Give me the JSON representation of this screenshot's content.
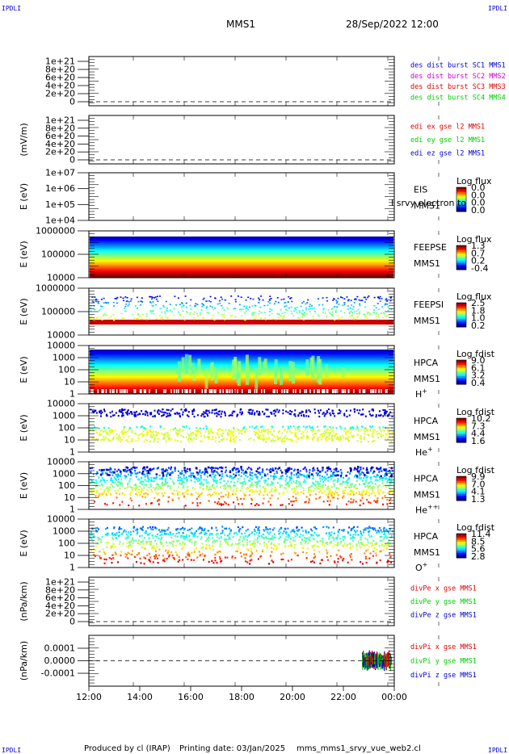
{
  "corner_label": "IPDLI",
  "header": {
    "spacecraft": "MMS1",
    "datetime": "28/Sep/2022 12:00"
  },
  "footer": {
    "produced_by": "Produced by cl (IRAP)",
    "printing_date": "Printing date: 03/Jan/2025",
    "filename": "mms_mms1_srvy_vue_web2.cl"
  },
  "x_ticks": [
    "12:00",
    "14:00",
    "16:00",
    "18:00",
    "20:00",
    "22:00",
    "00:00"
  ],
  "colors": {
    "c1": "#0000cc",
    "c2": "#cc00cc",
    "c3": "#dd0000",
    "c4": "#00cc00",
    "red": "#dd0000",
    "green": "#00cc00",
    "blue": "#0000cc"
  },
  "chart_data": [
    {
      "type": "line",
      "panel": "des-dist",
      "yticks": [
        "1e+21",
        "8e+20",
        "6e+20",
        "4e+20",
        "2e+20",
        "0"
      ],
      "ylabel": "",
      "legend": [
        {
          "text": "des dist burst SC1 MMS1",
          "color": "c1"
        },
        {
          "text": "des dist burst SC2 MMS2",
          "color": "c2"
        },
        {
          "text": "des dist burst SC3 MMS3",
          "color": "c3"
        },
        {
          "text": "des dist burst SC4 MMS4",
          "color": "c4"
        }
      ]
    },
    {
      "type": "line",
      "panel": "edi",
      "yticks": [
        "1e+21",
        "8e+20",
        "6e+20",
        "4e+20",
        "2e+20",
        "0"
      ],
      "ylabel": "(mV/m)",
      "legend": [
        {
          "text": "edi ex gse l2 MMS1",
          "color": "red"
        },
        {
          "text": "edi ey gse l2 MMS1",
          "color": "green"
        },
        {
          "text": "edi ez gse l2 MMS1",
          "color": "blue"
        }
      ]
    },
    {
      "type": "heatmap",
      "panel": "eis",
      "yticks": [
        "1e+07",
        "1e+06",
        "1e+05",
        "1e+04"
      ],
      "ylabel": "E (eV)",
      "inst": [
        "EIS",
        "MMS1"
      ],
      "overlay": "I srvy electron to",
      "cb_title": "Log flux",
      "cb_vals": [
        "0.0",
        "0.0",
        "0.0",
        "0.0"
      ]
    },
    {
      "type": "heatmap",
      "panel": "feepse",
      "yticks": [
        "1000000",
        "100000",
        "10000"
      ],
      "ylabel": "E (eV)",
      "inst": [
        "FEEPSE",
        "MMS1"
      ],
      "cb_title": "Log flux",
      "cb_vals": [
        "1.3",
        "0.7",
        "0.2",
        "-0.4"
      ]
    },
    {
      "type": "heatmap",
      "panel": "feepsi",
      "yticks": [
        "1000000",
        "100000",
        "10000"
      ],
      "ylabel": "E (eV)",
      "inst": [
        "FEEPSI",
        "MMS1"
      ],
      "cb_title": "Log flux",
      "cb_vals": [
        "2.5",
        "1.8",
        "1.0",
        "0.2"
      ]
    },
    {
      "type": "heatmap",
      "panel": "hpca-h",
      "yticks": [
        "10000",
        "1000",
        "100",
        "10",
        "1"
      ],
      "ylabel": "E (eV)",
      "inst": [
        "HPCA",
        "MMS1"
      ],
      "species": "H",
      "charge": "+",
      "cb_title": "Log fdist",
      "cb_vals": [
        "9.0",
        "6.1",
        "3.2",
        "0.4"
      ]
    },
    {
      "type": "heatmap",
      "panel": "hpca-he",
      "yticks": [
        "10000",
        "1000",
        "100",
        "10",
        "1"
      ],
      "ylabel": "E (eV)",
      "inst": [
        "HPCA",
        "MMS1"
      ],
      "species": "He",
      "charge": "+",
      "cb_title": "Log fdist",
      "cb_vals": [
        "10.2",
        "7.3",
        "4.4",
        "1.6"
      ]
    },
    {
      "type": "heatmap",
      "panel": "hpca-hepp",
      "yticks": [
        "10000",
        "1000",
        "100",
        "10",
        "1"
      ],
      "ylabel": "E (eV)",
      "inst": [
        "HPCA",
        "MMS1"
      ],
      "species": "He",
      "charge": "++",
      "cb_title": "Log fdist",
      "cb_vals": [
        "9.9",
        "7.0",
        "4.1",
        "1.3"
      ]
    },
    {
      "type": "heatmap",
      "panel": "hpca-o",
      "yticks": [
        "10000",
        "1000",
        "100",
        "10",
        "1"
      ],
      "ylabel": "E (eV)",
      "inst": [
        "HPCA",
        "MMS1"
      ],
      "species": "O",
      "charge": "+",
      "cb_title": "Log fdist",
      "cb_vals": [
        "11.4",
        "8.5",
        "5.6",
        "2.8"
      ]
    },
    {
      "type": "line",
      "panel": "divpe",
      "yticks": [
        "1e+21",
        "8e+20",
        "6e+20",
        "4e+20",
        "2e+20",
        "0"
      ],
      "ylabel": "(nPa/km)",
      "legend": [
        {
          "text": "divPe x gse MMS1",
          "color": "red"
        },
        {
          "text": "divPe y gse MMS1",
          "color": "green"
        },
        {
          "text": "divPe z gse MMS1",
          "color": "blue"
        }
      ]
    },
    {
      "type": "line",
      "panel": "divpi",
      "yticks": [
        "0.0001",
        "0.0000",
        "-0.0001"
      ],
      "ylabel": "(nPa/km)",
      "legend": [
        {
          "text": "divPi x gse MMS1",
          "color": "red"
        },
        {
          "text": "divPi y gse MMS1",
          "color": "green"
        },
        {
          "text": "divPi z gse MMS1",
          "color": "blue"
        }
      ],
      "data_window": [
        "22:40",
        "00:00"
      ]
    }
  ]
}
